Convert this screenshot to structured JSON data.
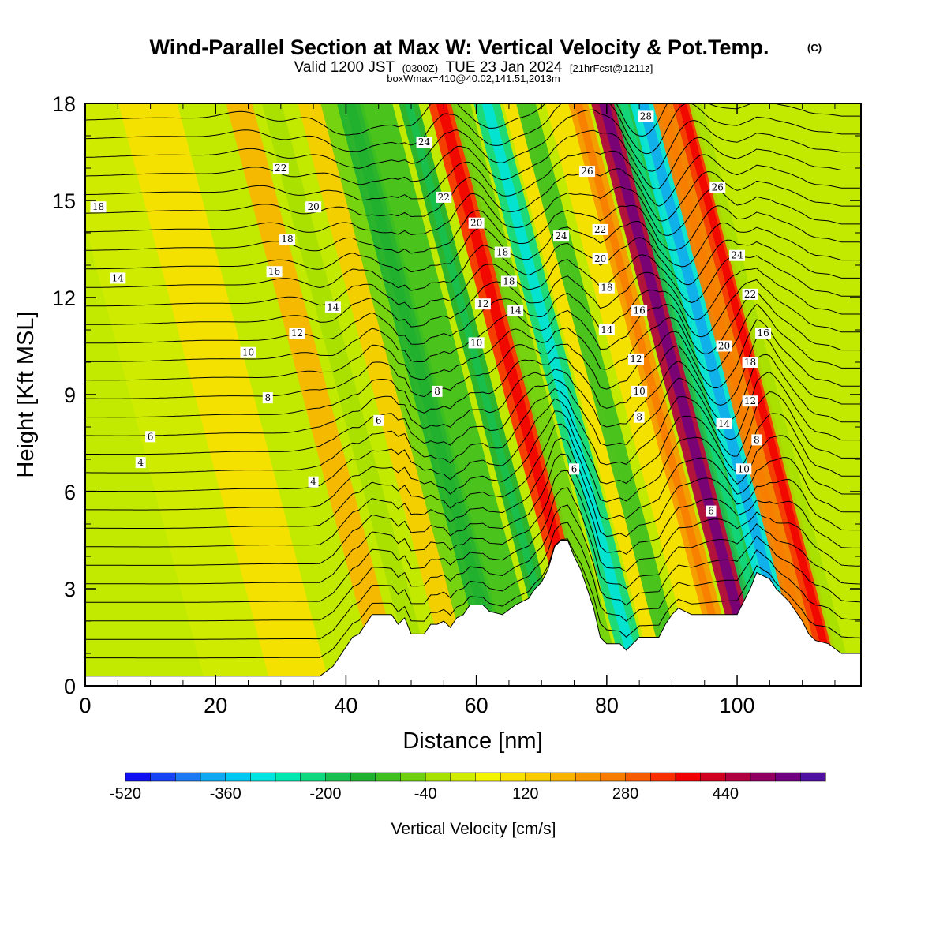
{
  "title": {
    "main": "Wind-Parallel Section at Max W: Vertical Velocity & Pot.Temp.",
    "main_mark": "(C)",
    "valid_prefix": "Valid 1200 JST",
    "valid_utc": "(0300Z)",
    "valid_date": "TUE 23 Jan 2024",
    "valid_fcst": "[21hrFcst@1211z]",
    "box_line": "boxWmax=410@40.02,141.51,2013m"
  },
  "chart_data": {
    "type": "heatmap",
    "title": "Wind-Parallel Section at Max W: Vertical Velocity & Pot.Temp.",
    "xlabel": "Distance [nm]",
    "ylabel": "Height [Kft MSL]",
    "xlim": [
      0,
      119
    ],
    "ylim": [
      0,
      18
    ],
    "x_ticks": [
      "0",
      "20",
      "40",
      "60",
      "80",
      "100"
    ],
    "y_ticks": [
      "0",
      "3",
      "6",
      "9",
      "12",
      "15",
      "18"
    ],
    "colorbar": {
      "title": "Vertical Velocity [cm/s]",
      "labels": [
        "-520",
        "-360",
        "-200",
        "-40",
        "120",
        "280",
        "440"
      ],
      "colors": [
        "#1010f0",
        "#1644f4",
        "#1c78f4",
        "#10a8f0",
        "#00c8f0",
        "#00e4e0",
        "#00e8b0",
        "#10d880",
        "#18c050",
        "#20b030",
        "#40c020",
        "#70d010",
        "#a8e000",
        "#d0ec00",
        "#f4f400",
        "#f8e000",
        "#f8cc00",
        "#f8b400",
        "#f89800",
        "#f87c00",
        "#f85c00",
        "#f83000",
        "#f00000",
        "#d00020",
        "#b00040",
        "#900060",
        "#700080",
        "#5010a0"
      ]
    },
    "terrain": [
      [
        0,
        0.3
      ],
      [
        36,
        0.3
      ],
      [
        38,
        0.6
      ],
      [
        39,
        0.9
      ],
      [
        40,
        1.2
      ],
      [
        41,
        1.5
      ],
      [
        42,
        1.6
      ],
      [
        43,
        1.9
      ],
      [
        44,
        2.2
      ],
      [
        47,
        2.2
      ],
      [
        48,
        1.9
      ],
      [
        49,
        2.1
      ],
      [
        50,
        1.6
      ],
      [
        52,
        1.6
      ],
      [
        53,
        1.9
      ],
      [
        54,
        1.9
      ],
      [
        55,
        2.0
      ],
      [
        56,
        1.8
      ],
      [
        57,
        2.1
      ],
      [
        58,
        2.2
      ],
      [
        59,
        2.5
      ],
      [
        61,
        2.5
      ],
      [
        62,
        2.3
      ],
      [
        64,
        2.2
      ],
      [
        66,
        2.5
      ],
      [
        68,
        2.7
      ],
      [
        69,
        3.0
      ],
      [
        70,
        3.2
      ],
      [
        71,
        3.6
      ],
      [
        72,
        4.3
      ],
      [
        73,
        4.5
      ],
      [
        74,
        4.5
      ],
      [
        75,
        4.0
      ],
      [
        76,
        3.6
      ],
      [
        77,
        3.0
      ],
      [
        78,
        2.4
      ],
      [
        79,
        1.5
      ],
      [
        80,
        1.3
      ],
      [
        82,
        1.3
      ],
      [
        83,
        1.1
      ],
      [
        84,
        1.3
      ],
      [
        85,
        1.5
      ],
      [
        88,
        1.5
      ],
      [
        89,
        1.9
      ],
      [
        90,
        2.2
      ],
      [
        91,
        2.4
      ],
      [
        92,
        2.3
      ],
      [
        93,
        2.2
      ],
      [
        100,
        2.2
      ],
      [
        101,
        2.6
      ],
      [
        102,
        3.0
      ],
      [
        103,
        3.5
      ],
      [
        105,
        3.3
      ],
      [
        106,
        3.0
      ],
      [
        107,
        2.8
      ],
      [
        108,
        2.6
      ],
      [
        109,
        2.3
      ],
      [
        110,
        2.0
      ],
      [
        111,
        1.6
      ],
      [
        112,
        1.4
      ],
      [
        114,
        1.3
      ],
      [
        116,
        1.0
      ],
      [
        119,
        1.0
      ]
    ],
    "w_bands": [
      {
        "x": 24,
        "w": -10,
        "width": 11
      },
      {
        "x": 33,
        "w": 40,
        "width": 9
      },
      {
        "x": 47,
        "w": 120,
        "width": 4
      },
      {
        "x": 52,
        "w": -60,
        "width": 3
      },
      {
        "x": 58,
        "w": 90,
        "width": 4
      },
      {
        "x": 61,
        "w": -120,
        "width": 3
      },
      {
        "x": 64,
        "w": -170,
        "width": 4
      },
      {
        "x": 68,
        "w": -140,
        "width": 5
      },
      {
        "x": 73,
        "w": -180,
        "width": 3
      },
      {
        "x": 78,
        "w": 300,
        "width": 4
      },
      {
        "x": 81,
        "w": -120,
        "width": 3
      },
      {
        "x": 85,
        "w": -280,
        "width": 4
      },
      {
        "x": 89,
        "w": 60,
        "width": 3
      },
      {
        "x": 91,
        "w": -140,
        "width": 3
      },
      {
        "x": 96,
        "w": 70,
        "width": 4
      },
      {
        "x": 99,
        "w": 190,
        "width": 3
      },
      {
        "x": 103,
        "w": 430,
        "width": 4
      },
      {
        "x": 106,
        "w": -220,
        "width": 3
      },
      {
        "x": 109,
        "w": -360,
        "width": 4
      },
      {
        "x": 112,
        "w": 200,
        "width": 3
      },
      {
        "x": 115,
        "w": 300,
        "width": 3
      },
      {
        "x": 117,
        "w": -60,
        "width": 2
      }
    ],
    "contour_labels": [
      {
        "text": "18",
        "x": 2,
        "y": 14.8
      },
      {
        "text": "14",
        "x": 5,
        "y": 12.6
      },
      {
        "text": "6",
        "x": 10,
        "y": 7.7
      },
      {
        "text": "4",
        "x": 8.5,
        "y": 6.9
      },
      {
        "text": "22",
        "x": 30,
        "y": 16.0
      },
      {
        "text": "20",
        "x": 35,
        "y": 14.8
      },
      {
        "text": "18",
        "x": 31,
        "y": 13.8
      },
      {
        "text": "16",
        "x": 29,
        "y": 12.8
      },
      {
        "text": "14",
        "x": 38,
        "y": 11.7
      },
      {
        "text": "12",
        "x": 32.5,
        "y": 10.9
      },
      {
        "text": "10",
        "x": 25,
        "y": 10.3
      },
      {
        "text": "8",
        "x": 28,
        "y": 8.9
      },
      {
        "text": "4",
        "x": 35,
        "y": 6.3
      },
      {
        "text": "6",
        "x": 45,
        "y": 8.2
      },
      {
        "text": "24",
        "x": 52,
        "y": 16.8
      },
      {
        "text": "22",
        "x": 55,
        "y": 15.1
      },
      {
        "text": "20",
        "x": 60,
        "y": 14.3
      },
      {
        "text": "18",
        "x": 64,
        "y": 13.4
      },
      {
        "text": "18",
        "x": 65,
        "y": 12.5
      },
      {
        "text": "14",
        "x": 66,
        "y": 11.6
      },
      {
        "text": "12",
        "x": 61,
        "y": 11.8
      },
      {
        "text": "10",
        "x": 60,
        "y": 10.6
      },
      {
        "text": "8",
        "x": 54,
        "y": 9.1
      },
      {
        "text": "28",
        "x": 86,
        "y": 17.6
      },
      {
        "text": "26",
        "x": 77,
        "y": 15.9
      },
      {
        "text": "24",
        "x": 73,
        "y": 13.9
      },
      {
        "text": "22",
        "x": 79,
        "y": 14.1
      },
      {
        "text": "20",
        "x": 79,
        "y": 13.2
      },
      {
        "text": "18",
        "x": 80,
        "y": 12.3
      },
      {
        "text": "16",
        "x": 85,
        "y": 11.6
      },
      {
        "text": "14",
        "x": 80,
        "y": 11.0
      },
      {
        "text": "12",
        "x": 84.5,
        "y": 10.1
      },
      {
        "text": "10",
        "x": 85,
        "y": 9.1
      },
      {
        "text": "8",
        "x": 85,
        "y": 8.3
      },
      {
        "text": "6",
        "x": 75,
        "y": 6.7
      },
      {
        "text": "26",
        "x": 97,
        "y": 15.4
      },
      {
        "text": "24",
        "x": 100,
        "y": 13.3
      },
      {
        "text": "22",
        "x": 102,
        "y": 12.1
      },
      {
        "text": "20",
        "x": 98,
        "y": 10.5
      },
      {
        "text": "16",
        "x": 104,
        "y": 10.9
      },
      {
        "text": "18",
        "x": 102,
        "y": 10.0
      },
      {
        "text": "12",
        "x": 102,
        "y": 8.8
      },
      {
        "text": "14",
        "x": 98,
        "y": 8.1
      },
      {
        "text": "8",
        "x": 103,
        "y": 7.6
      },
      {
        "text": "10",
        "x": 101,
        "y": 6.7
      },
      {
        "text": "6",
        "x": 96,
        "y": 5.4
      }
    ]
  }
}
